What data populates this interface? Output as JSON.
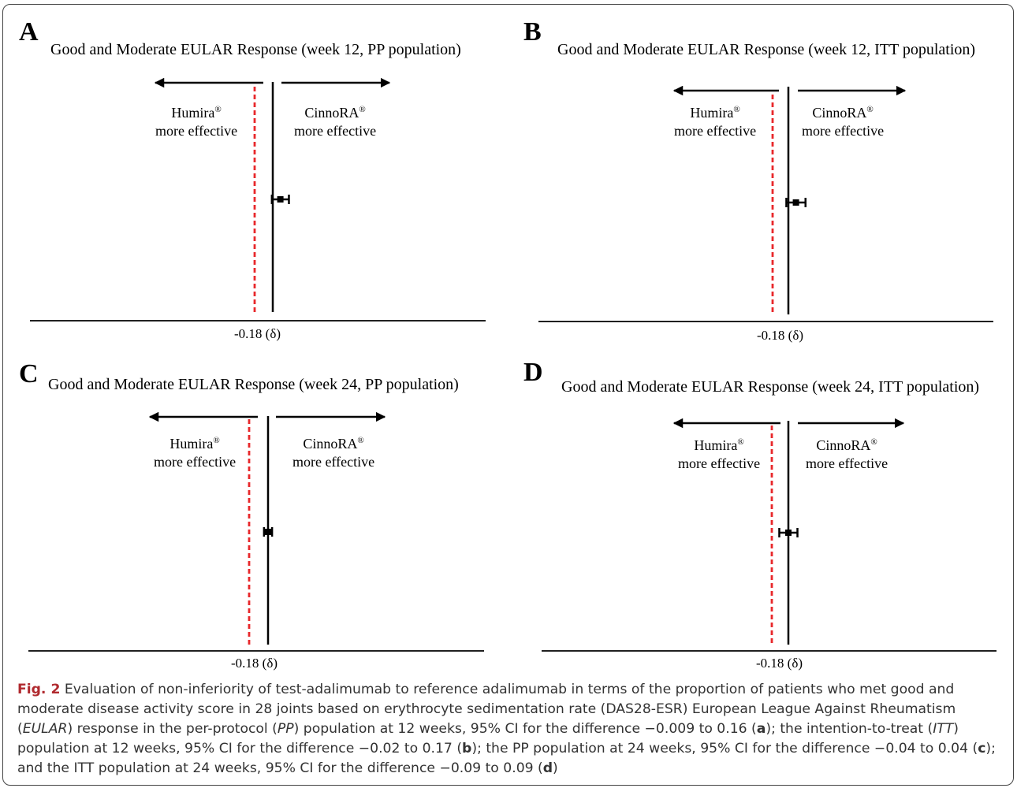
{
  "panels": [
    {
      "letter": "A",
      "title": "Good and Moderate EULAR Response (week 12, PP population)",
      "left_label": {
        "name": "Humira",
        "mark": "®",
        "line2": "more effective"
      },
      "right_label": {
        "name": "CinnoRA",
        "mark": "®",
        "line2": "more effective"
      },
      "margin_label": "-0.18 (δ)",
      "chart_data": {
        "type": "forest",
        "margin": -0.18,
        "point": 0.075,
        "ci": [
          -0.009,
          0.16
        ]
      }
    },
    {
      "letter": "B",
      "title": "Good and Moderate EULAR Response (week 12, ITT population)",
      "left_label": {
        "name": "Humira",
        "mark": "®",
        "line2": "more effective"
      },
      "right_label": {
        "name": "CinnoRA",
        "mark": "®",
        "line2": "more effective"
      },
      "margin_label": "-0.18 (δ)",
      "chart_data": {
        "type": "forest",
        "margin": -0.18,
        "point": 0.075,
        "ci": [
          -0.02,
          0.17
        ]
      }
    },
    {
      "letter": "C",
      "title": "Good and Moderate EULAR Response (week 24, PP population)",
      "left_label": {
        "name": "Humira",
        "mark": "®",
        "line2": "more effective"
      },
      "right_label": {
        "name": "CinnoRA",
        "mark": "®",
        "line2": "more effective"
      },
      "margin_label": "-0.18 (δ)",
      "chart_data": {
        "type": "forest",
        "margin": -0.18,
        "point": 0,
        "ci": [
          -0.04,
          0.04
        ]
      }
    },
    {
      "letter": "D",
      "title": "Good and Moderate EULAR Response (week 24, ITT population)",
      "left_label": {
        "name": "Humira",
        "mark": "®",
        "line2": "more effective"
      },
      "right_label": {
        "name": "CinnoRA",
        "mark": "®",
        "line2": "more effective"
      },
      "margin_label": "-0.18 (δ)",
      "chart_data": {
        "type": "forest",
        "margin": -0.18,
        "point": 0,
        "ci": [
          -0.09,
          0.09
        ]
      }
    }
  ],
  "caption": {
    "label": "Fig. 2",
    "parts": [
      " Evaluation of non-inferiority of test-adalimumab to reference adalimumab in terms of the proportion of patients who met good and moderate disease activity score in 28 joints based on erythrocyte sedimentation rate (DAS28-ESR) European League Against Rheumatism (",
      "EULAR",
      ") response in the per-protocol (",
      "PP",
      ") population at 12 weeks, 95% CI for the difference −0.009 to 0.16 (",
      "a",
      "); the intention-to-treat (",
      "ITT",
      ") population at 12 weeks, 95% CI for the difference −0.02 to 0.17 (",
      "b",
      "); the PP population at 24 weeks, 95% CI for the difference −0.04 to 0.04 (",
      "c",
      "); and the ITT population at 24 weeks, 95% CI for the difference −0.09 to 0.09 (",
      "d",
      ")"
    ]
  }
}
